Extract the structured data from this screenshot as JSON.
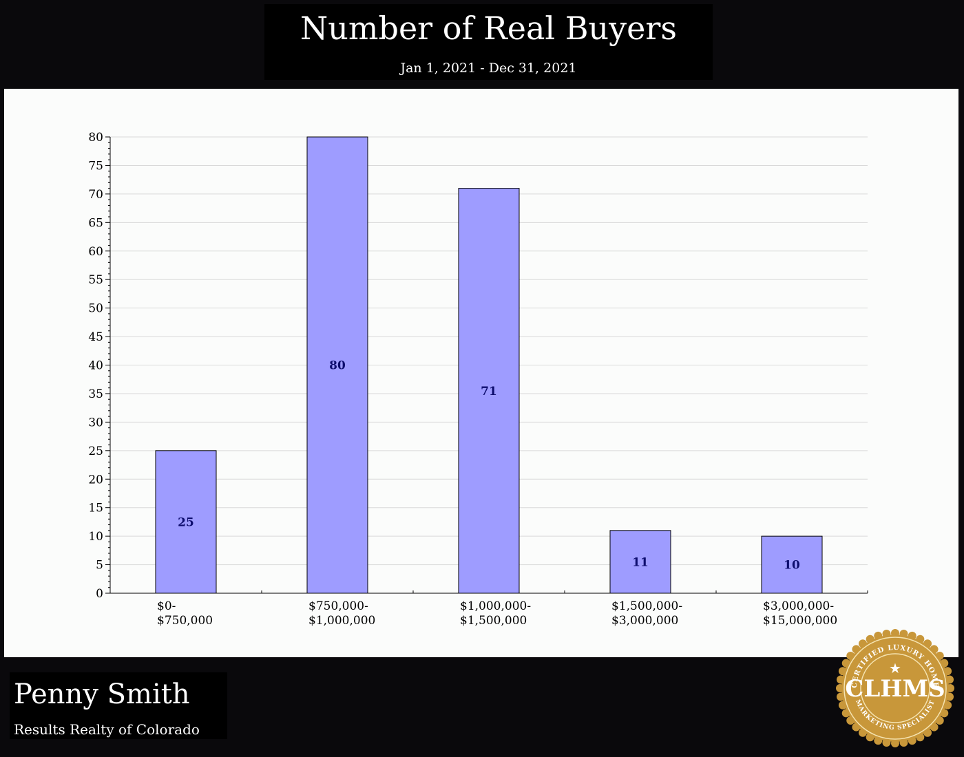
{
  "header": {
    "title": "Number of Real Buyers",
    "subtitle": "Jan 1, 2021 - Dec 31, 2021"
  },
  "footer": {
    "agent_name": "Penny Smith",
    "company": "Results Realty of Colorado"
  },
  "seal": {
    "top_text": "CERTIFIED LUXURY HOME",
    "center_text": "CLHMS",
    "bottom_text": "MARKETING SPECIALIST",
    "icon": "star-icon",
    "gold": "#c8973a",
    "dark_gold": "#8d6420"
  },
  "colors": {
    "background": "#0a090c",
    "panel": "#fbfcfb",
    "bar_fill": "#9e9cff",
    "bar_stroke": "#000000",
    "label_color": "#0d0d6e"
  },
  "chart_data": {
    "type": "bar",
    "categories": [
      [
        "$0-",
        "$750,000"
      ],
      [
        "$750,000-",
        "$1,000,000"
      ],
      [
        "$1,000,000-",
        "$1,500,000"
      ],
      [
        "$1,500,000-",
        "$3,000,000"
      ],
      [
        "$3,000,000-",
        "$15,000,000"
      ]
    ],
    "values": [
      25,
      80,
      71,
      11,
      10
    ],
    "data_labels": [
      "25",
      "80",
      "71",
      "11",
      "10"
    ],
    "title": "Number of Real Buyers",
    "subtitle": "Jan 1, 2021 - Dec 31, 2021",
    "xlabel": "",
    "ylabel": "",
    "ylim": [
      0,
      80
    ],
    "yticks": [
      0,
      5,
      10,
      15,
      20,
      25,
      30,
      35,
      40,
      45,
      50,
      55,
      60,
      65,
      70,
      75,
      80
    ],
    "grid": true,
    "legend": "none"
  }
}
